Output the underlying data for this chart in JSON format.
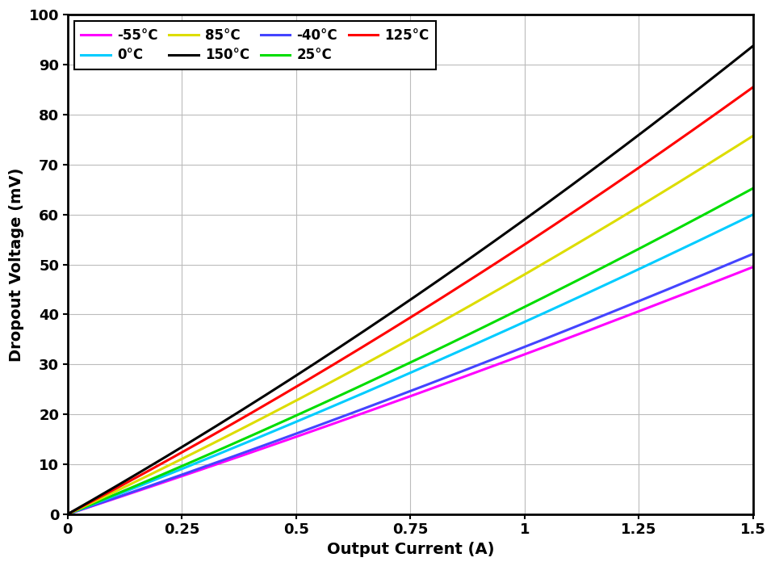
{
  "xlabel": "Output Current (A)",
  "ylabel": "Dropout Voltage (mV)",
  "xlim": [
    0,
    1.5
  ],
  "ylim": [
    0,
    100
  ],
  "xticks": [
    0,
    0.25,
    0.5,
    0.75,
    1.0,
    1.25,
    1.5
  ],
  "yticks": [
    0,
    10,
    20,
    30,
    40,
    50,
    60,
    70,
    80,
    90,
    100
  ],
  "series": [
    {
      "label": "-55°C",
      "color": "#FF00FF",
      "a": 2.0,
      "b": 30.0
    },
    {
      "label": "-40°C",
      "color": "#4444FF",
      "a": 2.5,
      "b": 31.0
    },
    {
      "label": "0°C",
      "color": "#00CCFF",
      "a": 3.0,
      "b": 35.5
    },
    {
      "label": "25°C",
      "color": "#00DD00",
      "a": 4.0,
      "b": 37.5
    },
    {
      "label": "85°C",
      "color": "#DDDD00",
      "a": 5.0,
      "b": 43.0
    },
    {
      "label": "125°C",
      "color": "#FF0000",
      "a": 6.0,
      "b": 48.0
    },
    {
      "label": "150°C",
      "color": "#000000",
      "a": 7.0,
      "b": 52.0
    }
  ],
  "linewidth": 2.2,
  "background_color": "#ffffff",
  "grid_color": "#bbbbbb",
  "legend_ncol": 4
}
